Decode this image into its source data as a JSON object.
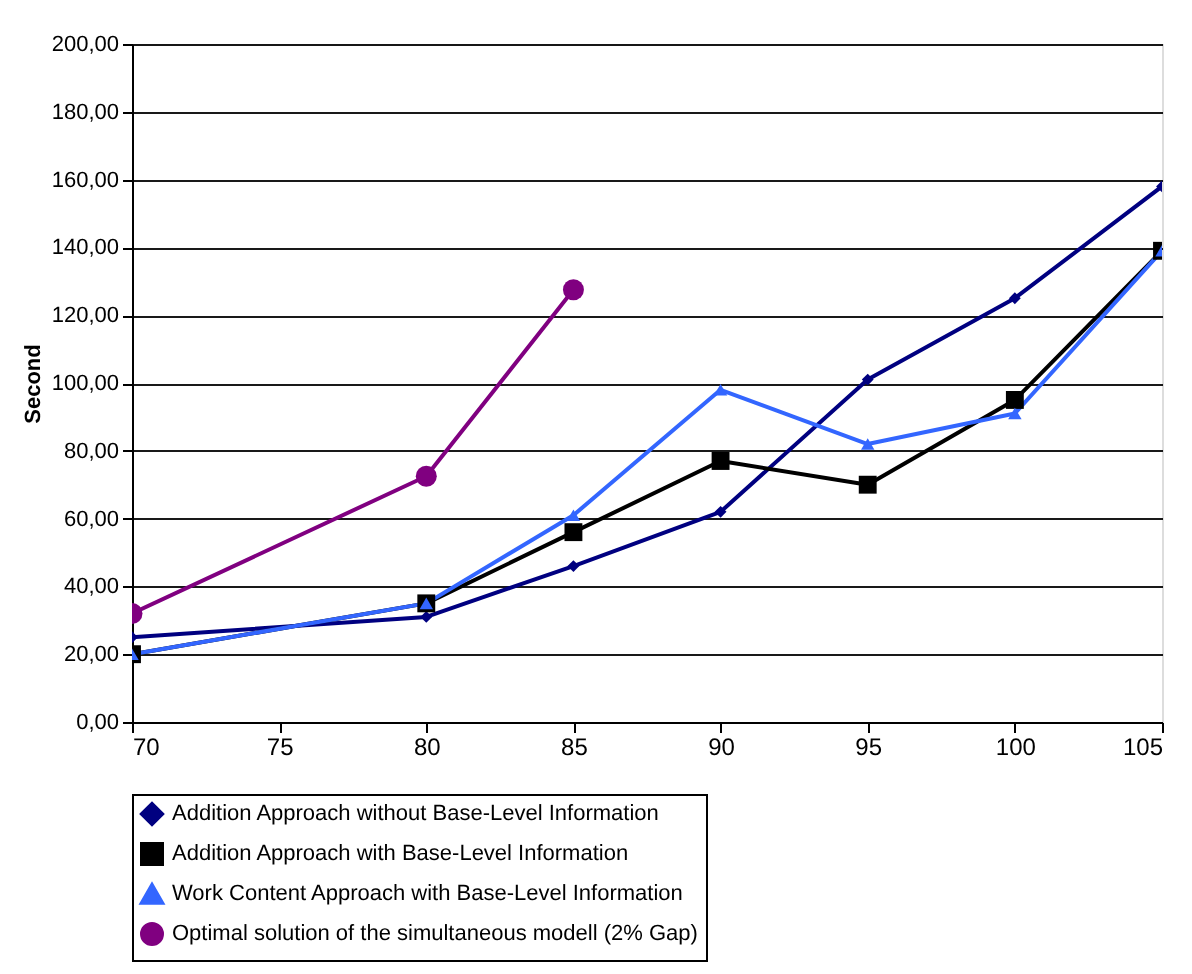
{
  "chart_data": {
    "type": "line",
    "ylabel": "Second",
    "x": [
      70,
      80,
      85,
      90,
      95,
      100,
      105
    ],
    "xlim": [
      70,
      105
    ],
    "xticks": [
      70,
      75,
      80,
      85,
      90,
      95,
      100,
      105
    ],
    "ylim": [
      0,
      200
    ],
    "yticks": [
      {
        "value": 0,
        "label": "0,00"
      },
      {
        "value": 20,
        "label": "20,00"
      },
      {
        "value": 40,
        "label": "40,00"
      },
      {
        "value": 60,
        "label": "60,00"
      },
      {
        "value": 80,
        "label": "80,00"
      },
      {
        "value": 100,
        "label": "100,00"
      },
      {
        "value": 120,
        "label": "120,00"
      },
      {
        "value": 140,
        "label": "140,00"
      },
      {
        "value": 160,
        "label": "160,00"
      },
      {
        "value": 180,
        "label": "180,00"
      },
      {
        "value": 200,
        "label": "200,00"
      }
    ],
    "grid": "y",
    "legend": "bottom",
    "series": [
      {
        "name": "Addition Approach without Base-Level Information",
        "color": "#000080",
        "marker": "diamond",
        "values": [
          25,
          31,
          46,
          62,
          101,
          125,
          158
        ]
      },
      {
        "name": "Addition Approach with Base-Level Information",
        "color": "#000000",
        "marker": "square",
        "values": [
          20,
          35,
          56,
          77,
          70,
          95,
          139
        ]
      },
      {
        "name": "Work Content Approach with Base-Level Information",
        "color": "#3366ff",
        "marker": "triangle",
        "values": [
          20,
          35,
          61,
          98,
          82,
          91,
          139
        ]
      },
      {
        "name": "Optimal solution of the simultaneous modell (2% Gap)",
        "color": "#800080",
        "marker": "circle",
        "x": [
          70,
          80,
          85
        ],
        "values": [
          32,
          72.5,
          127.5
        ]
      }
    ]
  }
}
